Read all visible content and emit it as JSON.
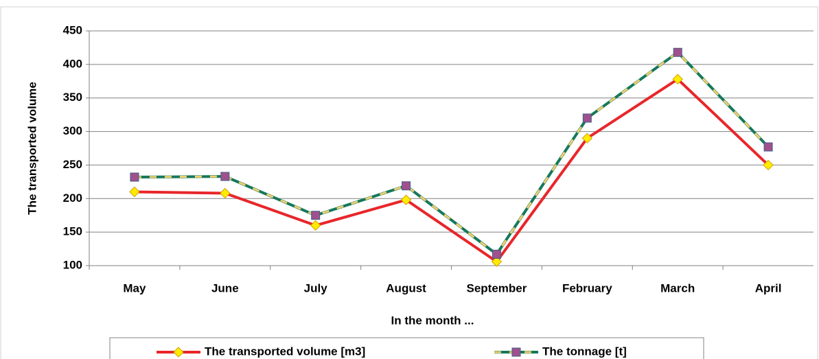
{
  "chart_data": {
    "type": "line",
    "x_label": "In the month ...",
    "y_label": "The transported volume",
    "categories": [
      "May",
      "June",
      "July",
      "August",
      "September",
      "February",
      "March",
      "April"
    ],
    "series": [
      {
        "name": "The transported volume [m3]",
        "color": "#e8262a",
        "marker": "diamond",
        "marker_color": "#ffec00",
        "values": [
          210,
          208,
          160,
          198,
          106,
          290,
          378,
          250
        ]
      },
      {
        "name": "The tonnage [t]",
        "color": "#15785a",
        "dash_color": "#f0d070",
        "marker": "square",
        "marker_color": "#a0508f",
        "values": [
          232,
          233,
          175,
          219,
          117,
          320,
          418,
          277
        ]
      }
    ],
    "ylim": [
      100,
      450
    ],
    "yticks": [
      100,
      150,
      200,
      250,
      300,
      350,
      400,
      450
    ],
    "grid": true,
    "legend": "bottom"
  }
}
